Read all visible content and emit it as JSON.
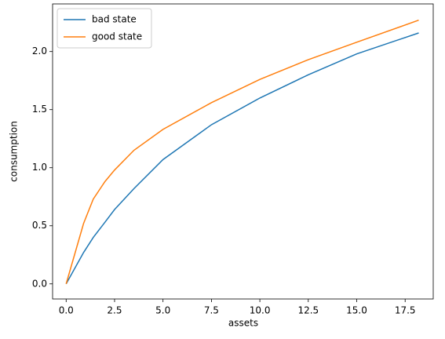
{
  "chart_data": {
    "type": "line",
    "x_label": "assets",
    "y_label": "consumption",
    "x": [
      0,
      0.9,
      1.4,
      2,
      2.5,
      3.5,
      5,
      7.5,
      10,
      12.5,
      15,
      18.2
    ],
    "series": [
      {
        "name": "bad state",
        "color": "#1f77b4",
        "values": [
          0,
          0.27,
          0.4,
          0.53,
          0.64,
          0.82,
          1.07,
          1.37,
          1.6,
          1.8,
          1.98,
          2.16
        ]
      },
      {
        "name": "good state",
        "color": "#ff7f0e",
        "values": [
          0,
          0.52,
          0.73,
          0.88,
          0.98,
          1.15,
          1.33,
          1.56,
          1.76,
          1.93,
          2.08,
          2.27
        ]
      }
    ],
    "xlim": [
      -0.7,
      18.95
    ],
    "ylim": [
      -0.13,
      2.41
    ],
    "xticks": [
      {
        "value": 0,
        "label": "0.0"
      },
      2.5,
      {
        "value": 5,
        "label": "5.0"
      },
      7.5,
      {
        "value": 10,
        "label": "10.0"
      },
      12.5,
      {
        "value": 15,
        "label": "15.0"
      },
      17.5
    ],
    "yticks": [
      {
        "value": 0,
        "label": "0.0"
      },
      0.5,
      {
        "value": 1,
        "label": "1.0"
      },
      1.5,
      {
        "value": 2,
        "label": "2.0"
      }
    ],
    "legend": "upper-left",
    "grid": false
  }
}
